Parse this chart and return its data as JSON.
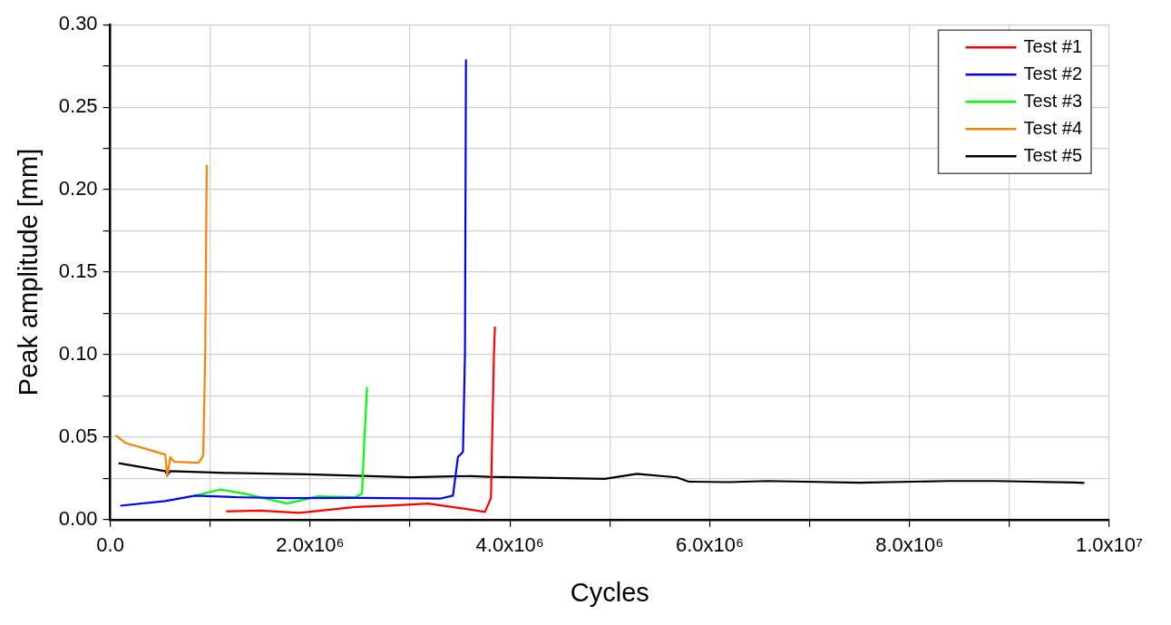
{
  "chart_data": {
    "type": "line",
    "xlabel": "Cycles",
    "ylabel": "Peak amplitude [mm]",
    "xlim": [
      0,
      10000000
    ],
    "ylim": [
      0,
      0.3
    ],
    "xticks": [
      {
        "value": 0,
        "label": "0.0"
      },
      {
        "value": 1000000,
        "label": null
      },
      {
        "value": 2000000,
        "label": "2.0x10⁶"
      },
      {
        "value": 3000000,
        "label": null
      },
      {
        "value": 4000000,
        "label": "4.0x10⁶"
      },
      {
        "value": 5000000,
        "label": null
      },
      {
        "value": 6000000,
        "label": "6.0x10⁶"
      },
      {
        "value": 7000000,
        "label": null
      },
      {
        "value": 8000000,
        "label": "8.0x10⁶"
      },
      {
        "value": 9000000,
        "label": null
      },
      {
        "value": 10000000,
        "label": "1.0x10⁷"
      }
    ],
    "yticks": [
      {
        "value": 0,
        "label": "0.00"
      },
      {
        "value": 0.025,
        "label": null
      },
      {
        "value": 0.05,
        "label": "0.05"
      },
      {
        "value": 0.075,
        "label": null
      },
      {
        "value": 0.1,
        "label": "0.10"
      },
      {
        "value": 0.125,
        "label": null
      },
      {
        "value": 0.15,
        "label": "0.15"
      },
      {
        "value": 0.175,
        "label": null
      },
      {
        "value": 0.2,
        "label": "0.20"
      },
      {
        "value": 0.225,
        "label": null
      },
      {
        "value": 0.25,
        "label": "0.25"
      },
      {
        "value": 0.275,
        "label": null
      },
      {
        "value": 0.3,
        "label": "0.30"
      }
    ],
    "grid": true,
    "legend": "top right",
    "marker": "none",
    "line_style": "solid",
    "series": [
      {
        "name": "Test #1",
        "color": "#ff0000",
        "x": [
          1160000,
          1500000,
          1890000,
          2200000,
          2450000,
          2800000,
          3180000,
          3500000,
          3750000,
          3810000,
          3840000,
          3850000
        ],
        "values": [
          0.005,
          0.0055,
          0.0041,
          0.006,
          0.0077,
          0.0085,
          0.0097,
          0.007,
          0.0046,
          0.013,
          0.1,
          0.117
        ]
      },
      {
        "name": "Test #2",
        "color": "#0000ff",
        "x": [
          100000,
          550000,
          850000,
          1300000,
          1770000,
          2500000,
          3300000,
          3430000,
          3480000,
          3530000,
          3550000,
          3560000
        ],
        "values": [
          0.0084,
          0.0112,
          0.0145,
          0.0135,
          0.013,
          0.0132,
          0.0127,
          0.0145,
          0.038,
          0.041,
          0.1,
          0.279
        ]
      },
      {
        "name": "Test #3",
        "color": "#00ff00",
        "x": [
          850000,
          1100000,
          1340000,
          1770000,
          2080000,
          2450000,
          2520000,
          2540000,
          2570000
        ],
        "values": [
          0.0145,
          0.0182,
          0.0158,
          0.0097,
          0.0141,
          0.0135,
          0.0158,
          0.0446,
          0.0803
        ]
      },
      {
        "name": "Test #4",
        "color": "#ff8000",
        "x": [
          52000,
          150000,
          550000,
          570000,
          600000,
          640000,
          885000,
          930000,
          950000,
          965000
        ],
        "values": [
          0.0511,
          0.0465,
          0.0394,
          0.0264,
          0.0378,
          0.035,
          0.0345,
          0.039,
          0.1,
          0.215
        ]
      },
      {
        "name": "Test #5",
        "color": "#000000",
        "x": [
          83000,
          550000,
          570000,
          600000,
          1160000,
          1960000,
          3000000,
          3610000,
          3790000,
          4950000,
          5270000,
          5670000,
          5790000,
          6190000,
          6580000,
          7500000,
          8380000,
          8860000,
          9640000,
          9750000
        ],
        "values": [
          0.0342,
          0.0294,
          0.027,
          0.0294,
          0.0283,
          0.0275,
          0.0257,
          0.0264,
          0.0259,
          0.0247,
          0.0277,
          0.0256,
          0.023,
          0.0227,
          0.0234,
          0.0224,
          0.0234,
          0.0234,
          0.0225,
          0.0222
        ]
      }
    ]
  }
}
